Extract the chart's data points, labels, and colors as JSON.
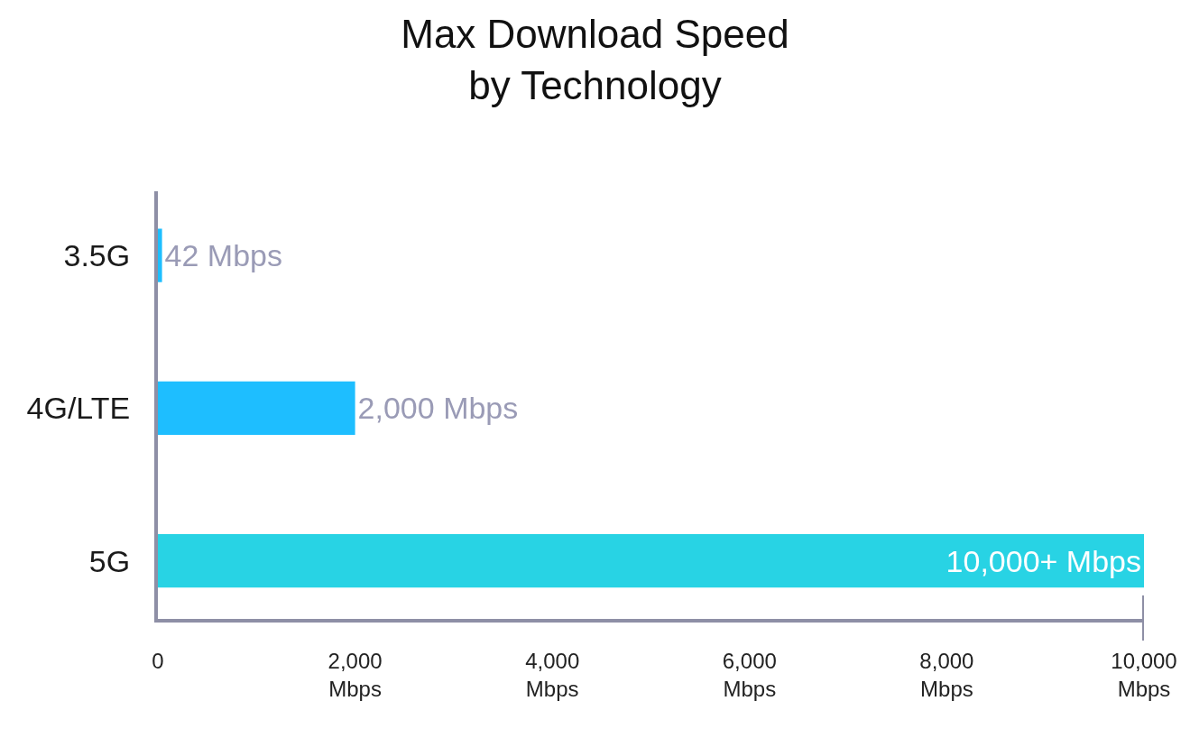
{
  "chart_data": {
    "type": "bar",
    "orientation": "horizontal",
    "title": "Max Download Speed\nby Technology",
    "categories": [
      "3.5G",
      "4G/LTE",
      "5G"
    ],
    "values": [
      42,
      2000,
      10000
    ],
    "colors": [
      "#1ebeff",
      "#1ebeff",
      "#28d3e4"
    ],
    "value_labels": [
      "42 Mbps",
      "2,000 Mbps",
      "10,000+ Mbps"
    ],
    "xlim": [
      0,
      10000
    ],
    "xticks": [
      0,
      {
        "value": 2000,
        "label": "2,000\nMbps"
      },
      {
        "value": 4000,
        "label": "4,000\nMbps"
      },
      {
        "value": 6000,
        "label": "6,000\nMbps"
      },
      {
        "value": 8000,
        "label": "8,000\nMbps"
      },
      {
        "value": 10000,
        "label": "10,000\nMbps"
      }
    ]
  }
}
